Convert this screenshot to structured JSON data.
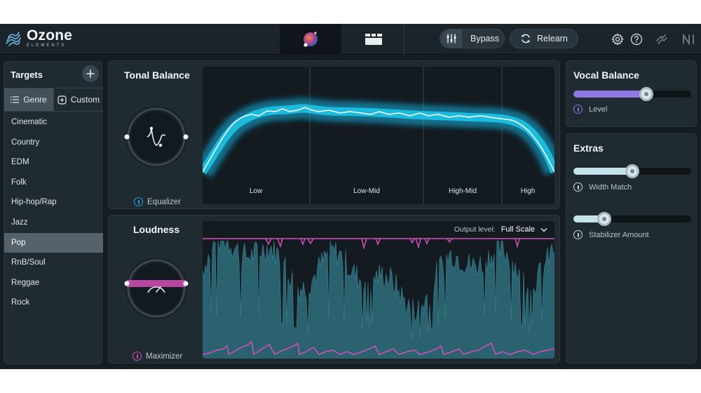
{
  "app": {
    "name": "Ozone",
    "edition": "ELEMENTS"
  },
  "toolbar": {
    "bypass_label": "Bypass",
    "relearn_label": "Relearn"
  },
  "targets": {
    "title": "Targets",
    "tabs": {
      "genre": "Genre",
      "custom": "Custom"
    },
    "genres": [
      "Cinematic",
      "Country",
      "EDM",
      "Folk",
      "Hip-hop/Rap",
      "Jazz",
      "Pop",
      "RnB/Soul",
      "Reggae",
      "Rock"
    ],
    "selected": "Pop"
  },
  "tonal_balance": {
    "title": "Tonal Balance",
    "knob_label": "Equalizer",
    "bands": [
      "Low",
      "Low-Mid",
      "High-Mid",
      "High"
    ]
  },
  "loudness": {
    "title": "Loudness",
    "knob_label": "Maximizer",
    "output_level_label": "Output level:",
    "output_level_value": "Full Scale"
  },
  "vocal_balance": {
    "title": "Vocal Balance",
    "level_label": "Level",
    "level_value": 0.62
  },
  "extras": {
    "title": "Extras",
    "width_match_label": "Width Match",
    "width_match_value": 0.5,
    "stabilizer_label": "Stabilizer Amount",
    "stabilizer_value": 0.26
  },
  "colors": {
    "accent_cyan": "#1fc6ec",
    "accent_pink": "#d64fb9",
    "accent_purple": "#8e78e6",
    "teal_fill": "#2d6c78"
  },
  "icons": [
    "ozone-logo-icon",
    "assistant-orb-icon",
    "modules-icon",
    "bypass-icon",
    "relearn-icon",
    "settings-icon",
    "help-icon",
    "plugin-link-icon",
    "ni-logo-icon",
    "plus-icon",
    "list-icon",
    "custom-icon"
  ]
}
